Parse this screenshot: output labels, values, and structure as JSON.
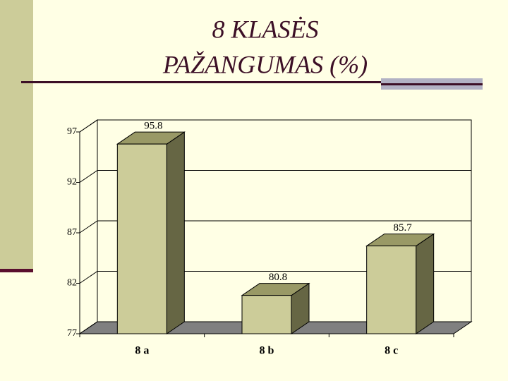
{
  "chart_data": {
    "type": "bar3d",
    "title": [
      "8 KLASĖS",
      "PAŽANGUMAS (%)"
    ],
    "categories": [
      "8 a",
      "8 b",
      "8 c"
    ],
    "values": [
      95.8,
      80.8,
      85.7
    ],
    "color": "#cccc99",
    "ylim": [
      77,
      97
    ],
    "yticks": [
      77,
      82,
      87,
      92,
      97
    ],
    "grid": true
  }
}
